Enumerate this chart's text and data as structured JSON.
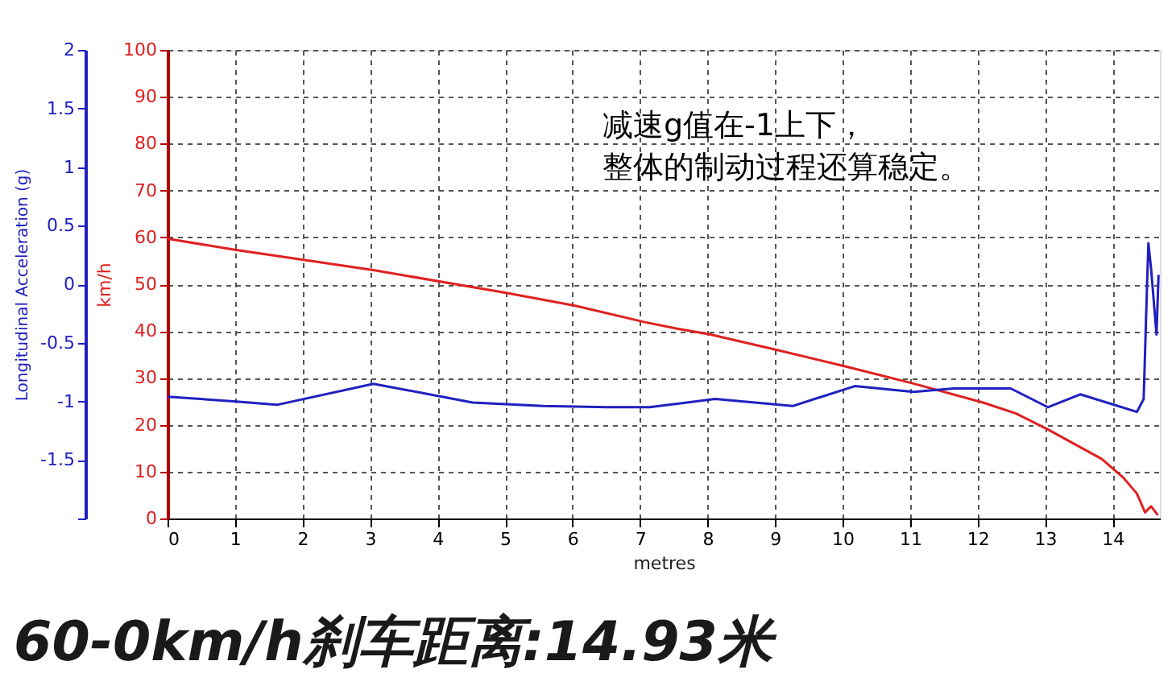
{
  "chart_data": {
    "type": "line",
    "title": "60-0km/h刹车距离:14.93米",
    "xlabel": "metres",
    "ylabel": "km/h",
    "y2label": "Longitudinal Acceleration (g)",
    "annotations": [
      "减速g值在-1上下，",
      "整体的制动过程还算稳定。"
    ],
    "xlim": [
      0,
      14.7
    ],
    "xticks": [
      0,
      1,
      2,
      3,
      4,
      5,
      6,
      7,
      8,
      9,
      10,
      11,
      12,
      13,
      14
    ],
    "ylim": [
      0,
      100
    ],
    "yticks": [
      0,
      10,
      20,
      30,
      40,
      50,
      60,
      70,
      80,
      90,
      100
    ],
    "y2lim": [
      -2,
      2
    ],
    "y2ticks": [
      {
        "value": -2,
        "label": null
      },
      -1.5,
      -1,
      -0.5,
      0,
      0.5,
      1,
      1.5,
      2
    ],
    "grid": true,
    "line_style": "solid",
    "marker": "none",
    "series": [
      {
        "color": "#e02020",
        "x": [
          0,
          0.98,
          3.05,
          5.0,
          6.04,
          7.07,
          7.55,
          8.03,
          9.02,
          10.06,
          11.05,
          12.09,
          12.57,
          13.04,
          13.84,
          14.16,
          14.36,
          14.48,
          14.57,
          14.67
        ],
        "values": [
          59.7,
          57.4,
          53.0,
          48.2,
          45.4,
          41.9,
          40.5,
          39.3,
          36.0,
          32.4,
          28.8,
          24.7,
          22.4,
          19.0,
          12.7,
          8.7,
          5.3,
          1.3,
          2.6,
          0.7
        ]
      },
      {
        "color": "#2020c0",
        "axis": "y2",
        "x": [
          0,
          0.98,
          1.62,
          3.05,
          4.52,
          5.56,
          6.51,
          7.14,
          7.55,
          8.11,
          9.26,
          10.18,
          11.05,
          11.65,
          12.49,
          13.04,
          13.52,
          14.36,
          14.46,
          14.51,
          14.53,
          14.57,
          14.65,
          14.68
        ],
        "values": [
          -0.96,
          -1.0,
          -1.03,
          -0.85,
          -1.01,
          -1.04,
          -1.05,
          -1.05,
          -1.02,
          -0.98,
          -1.04,
          -0.87,
          -0.92,
          -0.89,
          -0.89,
          -1.05,
          -0.94,
          -1.09,
          -0.98,
          0.0,
          0.35,
          0.13,
          -0.43,
          0.08
        ]
      }
    ]
  }
}
